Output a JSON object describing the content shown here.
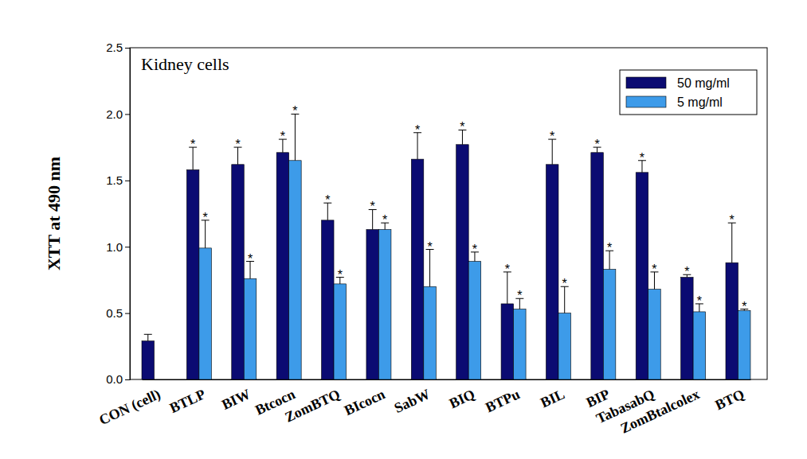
{
  "chart_data": {
    "type": "bar",
    "title": "Kidney cells",
    "y_label": "XTT at 490 nm",
    "categories": [
      "CON (cell)",
      "BTLP",
      "BIW",
      "Btcocn",
      "ZomBTQ",
      "BIcocn",
      "SabW",
      "BIQ",
      "BTPu",
      "BIL",
      "BIP",
      "TabasabQ",
      "ZomBtalcolex",
      "BTQ"
    ],
    "series": [
      {
        "name": "50 mg/ml",
        "color": "#0b0b72",
        "values": [
          0.29,
          1.58,
          1.62,
          1.71,
          1.2,
          1.13,
          1.66,
          1.77,
          0.57,
          1.62,
          1.71,
          1.56,
          0.77,
          0.88
        ],
        "errors": [
          0.05,
          0.17,
          0.13,
          0.1,
          0.13,
          0.15,
          0.2,
          0.11,
          0.24,
          0.19,
          0.04,
          0.09,
          0.02,
          0.3
        ],
        "significance": [
          null,
          "*",
          "*",
          "*",
          "*",
          "*",
          "*",
          "*",
          "*",
          "*",
          "*",
          "*",
          "*",
          "*"
        ]
      },
      {
        "name": "5 mg/ml",
        "color": "#3d9be9",
        "values": [
          null,
          0.99,
          0.76,
          1.65,
          0.72,
          1.13,
          0.7,
          0.89,
          0.53,
          0.5,
          0.83,
          0.68,
          0.51,
          0.52
        ],
        "errors": [
          null,
          0.21,
          0.13,
          0.35,
          0.05,
          0.05,
          0.28,
          0.07,
          0.08,
          0.2,
          0.14,
          0.13,
          0.06,
          0.01
        ],
        "significance": [
          null,
          "*",
          "*",
          "*",
          "*",
          "*",
          "*",
          "*",
          "*",
          "*",
          "*",
          "*",
          "*",
          "*"
        ]
      }
    ],
    "ylim": [
      0,
      2.5
    ],
    "yticks": [
      {
        "value": 0,
        "label": "0.0"
      },
      {
        "value": 0.5,
        "label": "0.5"
      },
      {
        "value": 1,
        "label": "1.0"
      },
      {
        "value": 1.5,
        "label": "1.5"
      },
      {
        "value": 2,
        "label": "2.0"
      },
      {
        "value": 2.5,
        "label": "2.5"
      }
    ],
    "legend": "upper right",
    "grid": false
  }
}
